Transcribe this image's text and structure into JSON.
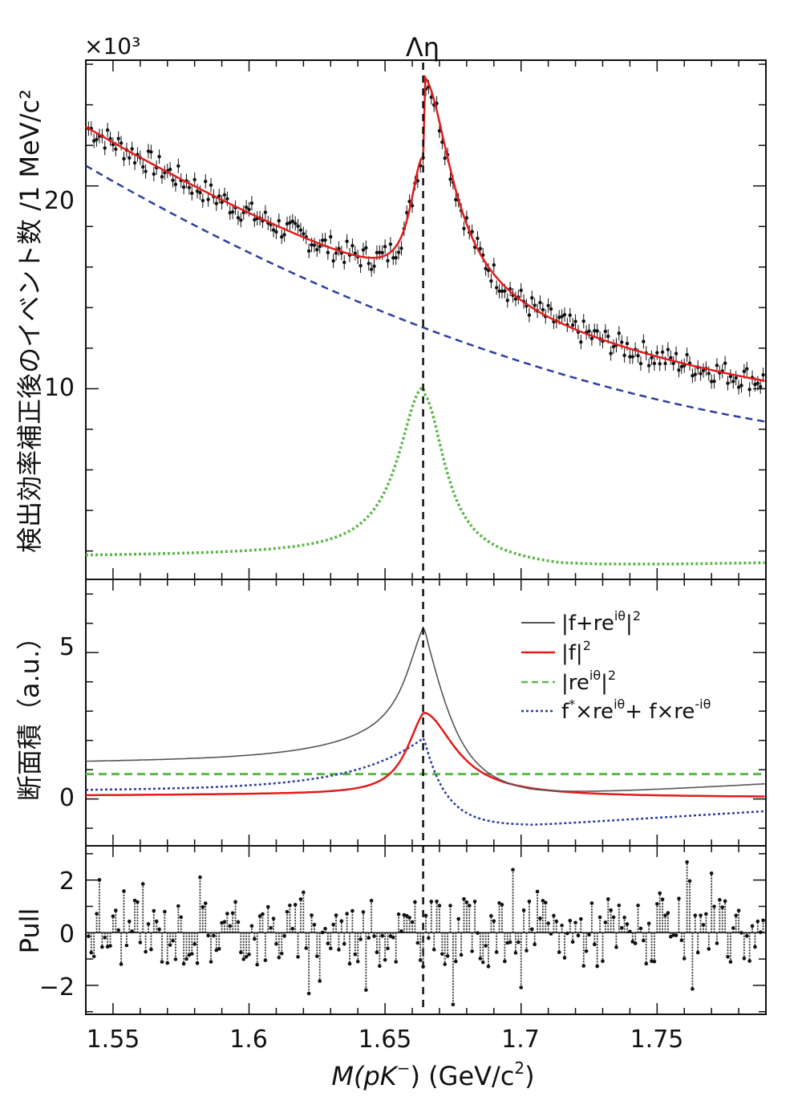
{
  "chart_data": [
    {
      "type": "scatter",
      "name_text": "yield-panel",
      "ylabel": "検出効率補正後のイベント数 /1 MeV/c²",
      "multiplier": "×10³",
      "xlim": [
        1.54,
        1.79
      ],
      "ylim": [
        0.6,
        26.2
      ],
      "y_ticks": [
        10,
        20
      ],
      "y_tick_labels": [
        "10",
        "20"
      ],
      "annotation": "Λη",
      "threshold_x": 1.664,
      "data_points_sample": [
        {
          "x": 1.545,
          "y": 23.2
        },
        {
          "x": 1.56,
          "y": 22.6
        },
        {
          "x": 1.575,
          "y": 22.0
        },
        {
          "x": 1.59,
          "y": 21.3
        },
        {
          "x": 1.605,
          "y": 20.4
        },
        {
          "x": 1.62,
          "y": 19.7
        },
        {
          "x": 1.635,
          "y": 19.2
        },
        {
          "x": 1.645,
          "y": 19.4
        },
        {
          "x": 1.655,
          "y": 21.2
        },
        {
          "x": 1.664,
          "y": 23.8
        },
        {
          "x": 1.67,
          "y": 20.0
        },
        {
          "x": 1.68,
          "y": 16.6
        },
        {
          "x": 1.695,
          "y": 13.9
        },
        {
          "x": 1.71,
          "y": 12.4
        },
        {
          "x": 1.725,
          "y": 11.6
        },
        {
          "x": 1.74,
          "y": 11.0
        },
        {
          "x": 1.755,
          "y": 10.6
        },
        {
          "x": 1.77,
          "y": 10.3
        },
        {
          "x": 1.785,
          "y": 10.2
        }
      ],
      "series": [
        {
          "color": "#e21b1b",
          "style": "solid"
        },
        {
          "color": "#2c3ea0",
          "style": "dashed"
        },
        {
          "color": "#5cb84a",
          "style": "dotted"
        }
      ]
    },
    {
      "type": "line",
      "name_text": "cross-section-panel",
      "ylabel": "断面積（a.u.）",
      "xlim": [
        1.54,
        1.79
      ],
      "ylim": [
        -1.6,
        7.5
      ],
      "y_ticks": [
        0,
        5
      ],
      "y_tick_labels": [
        "0",
        "5"
      ],
      "threshold_x": 1.664,
      "legend_position": "top-right",
      "legend": [
        {
          "label_main": "|f+re",
          "label_sup": "iθ",
          "label_tail": "|",
          "label_sup2": "2",
          "color": "#555555",
          "style": "solid"
        },
        {
          "label_main": "|f|",
          "label_sup": "2",
          "label_tail": "",
          "label_sup2": "",
          "color": "#e21b1b",
          "style": "solid"
        },
        {
          "label_main": "|re",
          "label_sup": "iθ",
          "label_tail": "|",
          "label_sup2": "2",
          "color": "#5cb84a",
          "style": "dashed"
        },
        {
          "label_main": "f",
          "label_sup": "*",
          "label_tail": "×re",
          "label_sup2": "iθ",
          "label_end": "+ f×re",
          "label_sup3": "-iθ",
          "color": "#2c3ea0",
          "style": "dotted"
        }
      ],
      "curve_samples": {
        "total": [
          {
            "x": 1.54,
            "y": 1.2
          },
          {
            "x": 1.6,
            "y": 1.5
          },
          {
            "x": 1.64,
            "y": 2.3
          },
          {
            "x": 1.664,
            "y": 6.1
          },
          {
            "x": 1.69,
            "y": 1.3
          },
          {
            "x": 1.72,
            "y": 0.45
          },
          {
            "x": 1.79,
            "y": 0.5
          }
        ],
        "f_squared": [
          {
            "x": 1.54,
            "y": 0.0
          },
          {
            "x": 1.62,
            "y": 0.3
          },
          {
            "x": 1.655,
            "y": 1.5
          },
          {
            "x": 1.664,
            "y": 3.1
          },
          {
            "x": 1.69,
            "y": 1.0
          },
          {
            "x": 1.74,
            "y": 0.3
          },
          {
            "x": 1.79,
            "y": 0.05
          }
        ],
        "r_squared": [
          {
            "x": 1.54,
            "y": 0.85
          },
          {
            "x": 1.79,
            "y": 0.85
          }
        ],
        "interference": [
          {
            "x": 1.54,
            "y": 0.3
          },
          {
            "x": 1.62,
            "y": 0.8
          },
          {
            "x": 1.664,
            "y": 2.2
          },
          {
            "x": 1.69,
            "y": -0.7
          },
          {
            "x": 1.7,
            "y": -0.9
          },
          {
            "x": 1.79,
            "y": -0.5
          }
        ]
      }
    },
    {
      "type": "scatter",
      "name_text": "pull-panel",
      "ylabel": "Pull",
      "xlabel_main": "M",
      "xlabel_paren": "(pK",
      "xlabel_sup": "−",
      "xlabel_rest": ") (GeV/c",
      "xlabel_sup2": "2",
      "xlabel_end": ")",
      "xlim": [
        1.54,
        1.79
      ],
      "ylim": [
        -3.1,
        3.3
      ],
      "y_ticks": [
        -2,
        0,
        2
      ],
      "y_tick_labels": [
        "−2",
        "0",
        "2"
      ],
      "x_ticks": [
        1.55,
        1.6,
        1.65,
        1.7,
        1.75
      ],
      "x_tick_labels": [
        "1.55",
        "1.6",
        "1.65",
        "1.7",
        "1.75"
      ],
      "pull_range": [
        -3,
        3
      ]
    }
  ]
}
